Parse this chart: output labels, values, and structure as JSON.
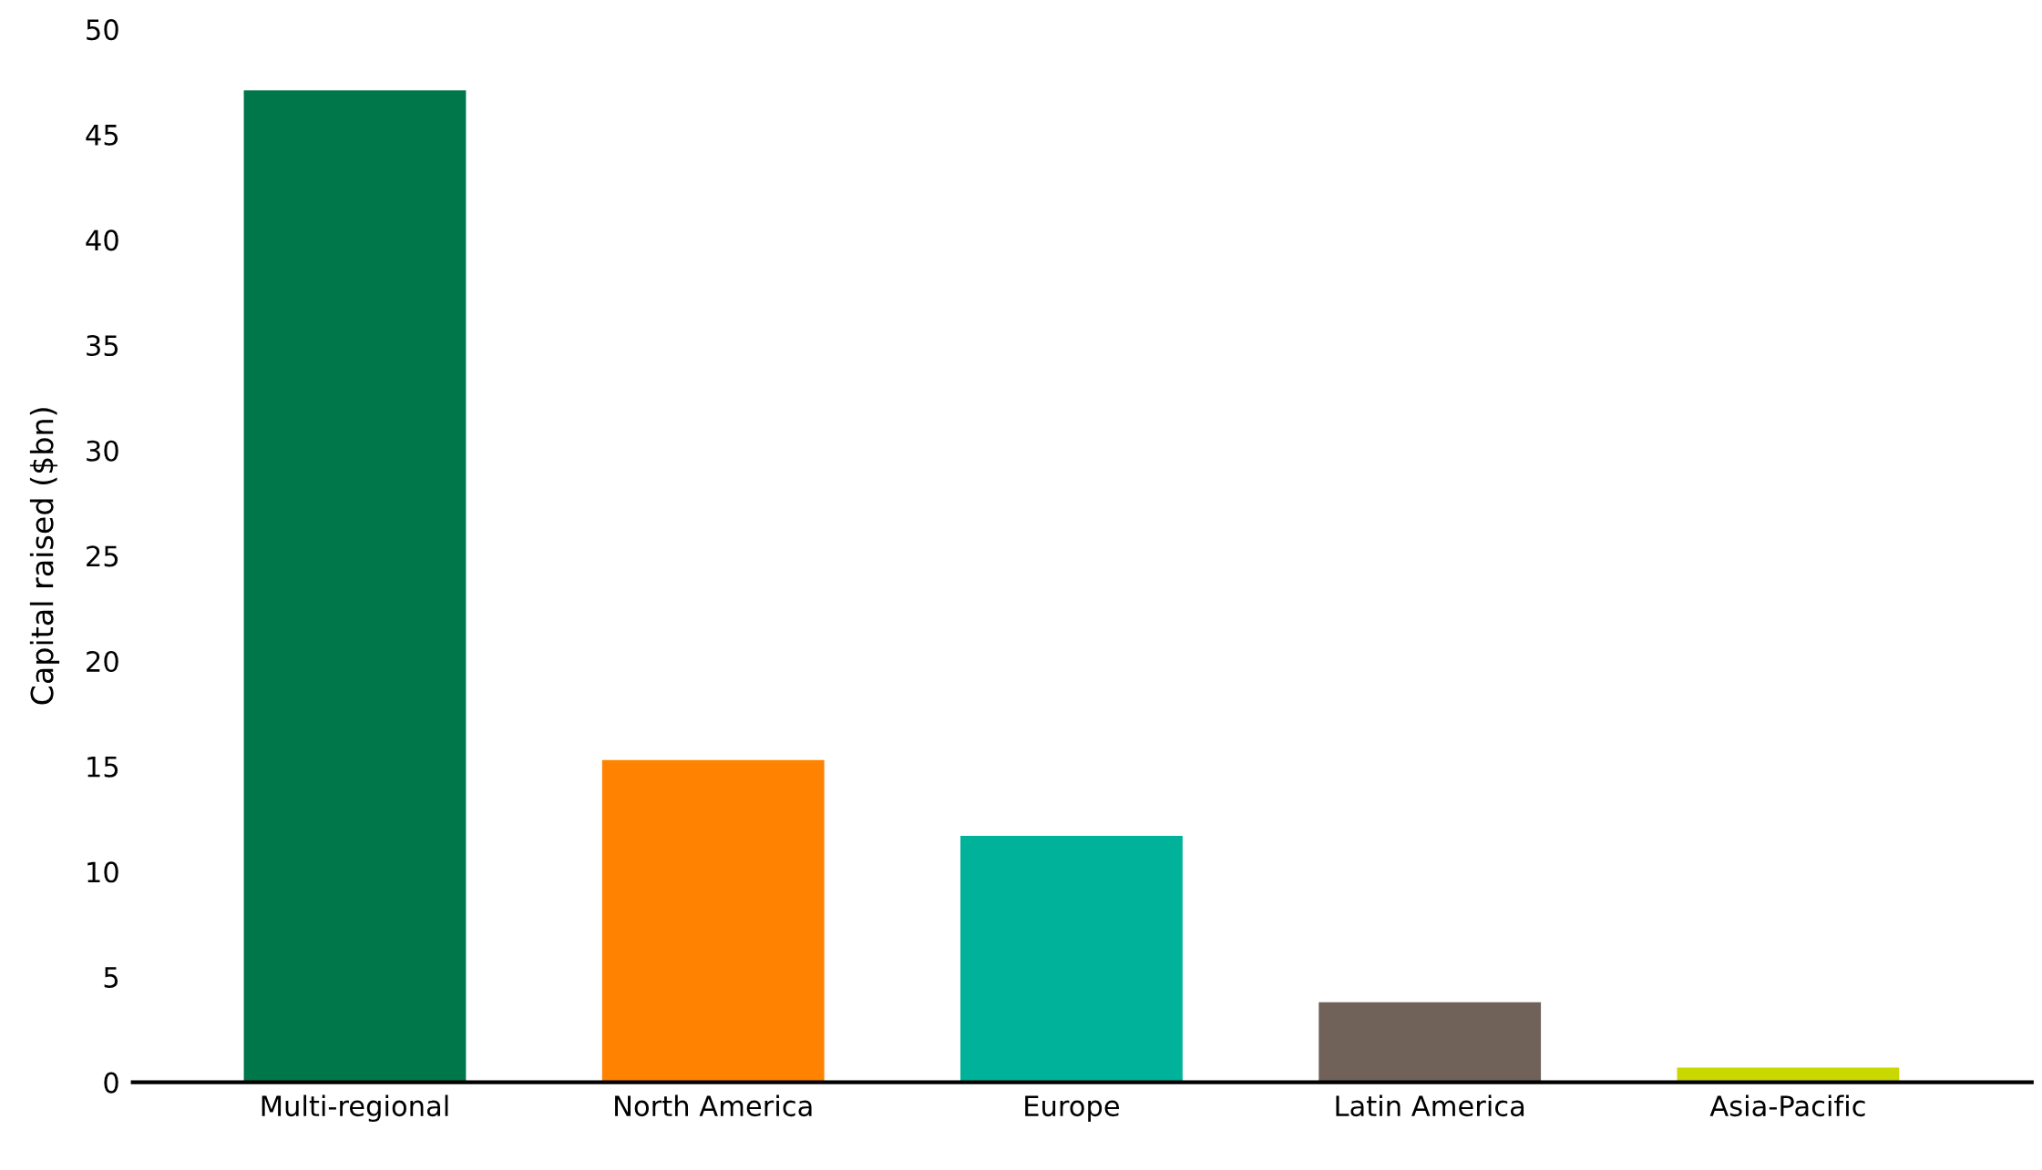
{
  "chart_data": {
    "type": "bar",
    "ylabel": "Capital raised ($bn)",
    "categories": [
      "Multi-regional",
      "North America",
      "Europe",
      "Latin America",
      "Asia-Pacific"
    ],
    "values": [
      47.1,
      15.3,
      11.7,
      3.8,
      0.7
    ],
    "colors": [
      "#00774a",
      "#ff8200",
      "#00b299",
      "#706259",
      "#c8d800"
    ],
    "ylim": [
      0,
      50
    ],
    "yticks": [
      0,
      5,
      10,
      15,
      20,
      25,
      30,
      35,
      40,
      45,
      50
    ],
    "grid": false,
    "legend": false
  }
}
